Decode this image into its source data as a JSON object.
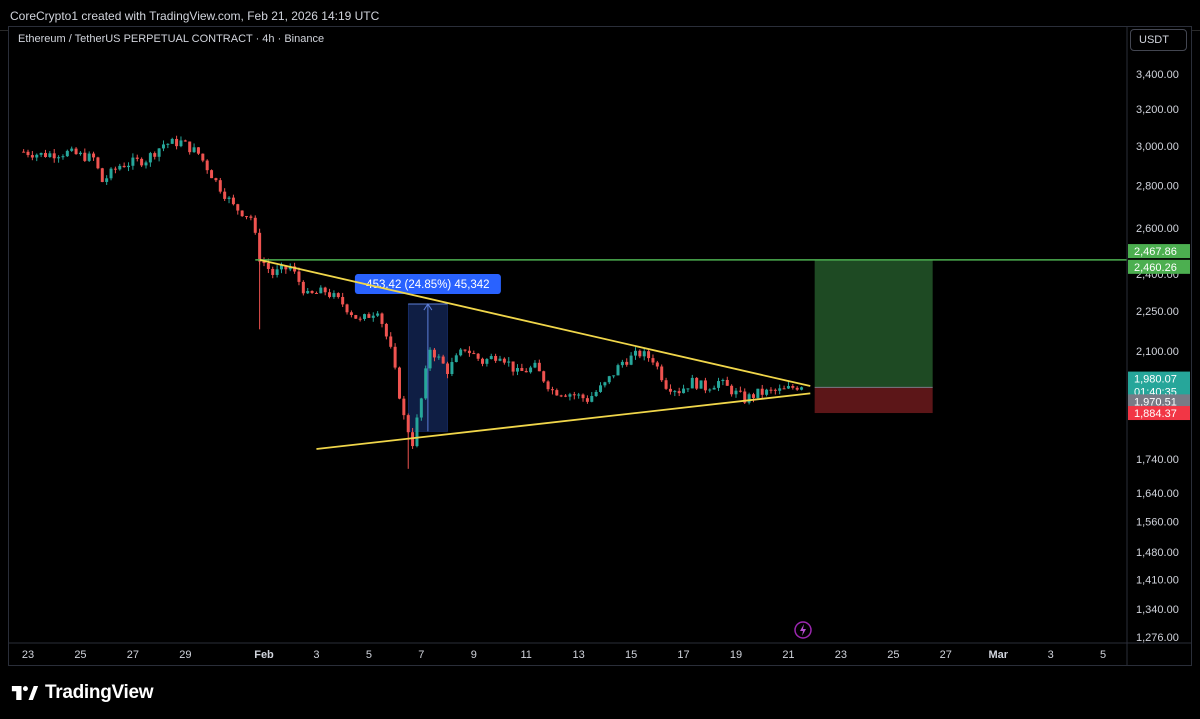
{
  "header": {
    "attribution": "CoreCrypto1 created with TradingView.com, Feb 21, 2026 14:19 UTC"
  },
  "chart_header": {
    "symbol_title": "Ethereum / TetherUS PERPETUAL CONTRACT · 4h · Binance",
    "currency": "USDT"
  },
  "footer": {
    "brand": "TradingView",
    "event_icon": "lightning-icon"
  },
  "colors": {
    "up": "#26a69a",
    "down": "#ef5350",
    "trendline": "#f0d64a",
    "resistance": "#4caf50",
    "measure_box": "#0f1e44",
    "measure_label": "#2962ff",
    "target_zone": "#1e4a23",
    "stop_zone": "#5c1618"
  },
  "chart_data": {
    "type": "candlestick",
    "title": "Ethereum / TetherUS PERPETUAL CONTRACT · 4h · Binance",
    "xlabel": "",
    "ylabel": "USDT",
    "log_scale": true,
    "grid": false,
    "ylim": [
      1276,
      3700
    ],
    "x_ticks": [
      "23",
      "25",
      "27",
      "29",
      "Feb",
      "3",
      "5",
      "7",
      "9",
      "11",
      "13",
      "15",
      "17",
      "19",
      "21",
      "23",
      "25",
      "27",
      "Mar",
      "3",
      "5"
    ],
    "y_ticks": [
      "3,400.00",
      "3,200.00",
      "3,000.00",
      "2,800.00",
      "2,600.00",
      "2,400.00",
      "2,250.00",
      "2,100.00",
      "1,740.00",
      "1,640.00",
      "1,560.00",
      "1,480.00",
      "1,410.00",
      "1,340.00",
      "1,276.00"
    ],
    "y_tick_values": [
      3400,
      3200,
      3000,
      2800,
      2600,
      2400,
      2250,
      2100,
      1740,
      1640,
      1560,
      1480,
      1410,
      1340,
      1276
    ],
    "x_range_days": [
      "2026-01-22T20:00",
      "2026-03-06T00:00"
    ],
    "series_close_points": [
      [
        "2026-01-22T20:00",
        2970
      ],
      [
        "2026-01-23T12:00",
        2955
      ],
      [
        "2026-01-24T12:00",
        2965
      ],
      [
        "2026-01-25T12:00",
        2935
      ],
      [
        "2026-01-25T20:00",
        2820
      ],
      [
        "2026-01-26T12:00",
        2900
      ],
      [
        "2026-01-27T12:00",
        2930
      ],
      [
        "2026-01-28T04:00",
        3010
      ],
      [
        "2026-01-28T20:00",
        3020
      ],
      [
        "2026-01-29T12:00",
        2960
      ],
      [
        "2026-01-30T04:00",
        2820
      ],
      [
        "2026-01-30T20:00",
        2700
      ],
      [
        "2026-01-31T12:00",
        2650
      ],
      [
        "2026-01-31T20:00",
        2470
      ],
      [
        "2026-02-01T08:00",
        2400
      ],
      [
        "2026-02-02T00:00",
        2430
      ],
      [
        "2026-02-02T16:00",
        2310
      ],
      [
        "2026-02-03T08:00",
        2330
      ],
      [
        "2026-02-04T00:00",
        2280
      ],
      [
        "2026-02-04T16:00",
        2210
      ],
      [
        "2026-02-05T08:00",
        2260
      ],
      [
        "2026-02-05T20:00",
        2100
      ],
      [
        "2026-02-06T08:00",
        1870
      ],
      [
        "2026-02-06T16:00",
        1790
      ],
      [
        "2026-02-07T00:00",
        1930
      ],
      [
        "2026-02-07T08:00",
        2110
      ],
      [
        "2026-02-08T00:00",
        2030
      ],
      [
        "2026-02-08T16:00",
        2110
      ],
      [
        "2026-02-09T08:00",
        2060
      ],
      [
        "2026-02-10T00:00",
        2090
      ],
      [
        "2026-02-10T16:00",
        2020
      ],
      [
        "2026-02-11T08:00",
        2040
      ],
      [
        "2026-02-12T00:00",
        1960
      ],
      [
        "2026-02-12T16:00",
        1950
      ],
      [
        "2026-02-13T08:00",
        1930
      ],
      [
        "2026-02-14T00:00",
        1980
      ],
      [
        "2026-02-14T16:00",
        2060
      ],
      [
        "2026-02-15T08:00",
        2090
      ],
      [
        "2026-02-15T20:00",
        2070
      ],
      [
        "2026-02-16T08:00",
        1980
      ],
      [
        "2026-02-16T20:00",
        1960
      ],
      [
        "2026-02-17T08:00",
        1990
      ],
      [
        "2026-02-17T20:00",
        1970
      ],
      [
        "2026-02-18T08:00",
        1990
      ],
      [
        "2026-02-18T20:00",
        1960
      ],
      [
        "2026-02-19T08:00",
        1930
      ],
      [
        "2026-02-19T20:00",
        1950
      ],
      [
        "2026-02-20T08:00",
        1955
      ],
      [
        "2026-02-20T20:00",
        1960
      ],
      [
        "2026-02-21T08:00",
        1975
      ],
      [
        "2026-02-21T12:00",
        1980
      ]
    ],
    "annotations": {
      "measure": {
        "label": "453.42 (24.85%) 45,342",
        "from": [
          "2026-02-06T12:00",
          1825
        ],
        "to": [
          "2026-02-08T00:00",
          2278
        ]
      },
      "resistance_line": {
        "price": 2460.26
      },
      "triangle_upper": {
        "from": [
          "2026-01-31T20:00",
          2460
        ],
        "to": [
          "2026-02-21T20:00",
          1975
        ]
      },
      "triangle_lower": {
        "from": [
          "2026-02-03T00:00",
          1770
        ],
        "to": [
          "2026-02-21T20:00",
          1950
        ]
      },
      "long_position": {
        "entry": 1970.51,
        "target": 2460.26,
        "stop": 1884.37,
        "x_from": "2026-02-22T00:00",
        "x_to": "2026-02-26T12:00"
      }
    },
    "price_labels": [
      {
        "text": "2,467.86",
        "value": 2467.86,
        "color": "#4caf50",
        "offset": -7
      },
      {
        "text": "2,460.26",
        "value": 2460.26,
        "color": "#4caf50",
        "offset": 7
      },
      {
        "text": "1,980.07",
        "value": 1980.07,
        "color": "#26a69a",
        "offset": -6
      },
      {
        "text": "01:40:35",
        "value": 1980.07,
        "color": "#26a69a",
        "offset": 7
      },
      {
        "text": "1,970.51",
        "value": 1970.51,
        "color": "#787b86",
        "offset": 14
      },
      {
        "text": "1,884.37",
        "value": 1884.37,
        "color": "#f23645",
        "offset": 0
      }
    ]
  }
}
